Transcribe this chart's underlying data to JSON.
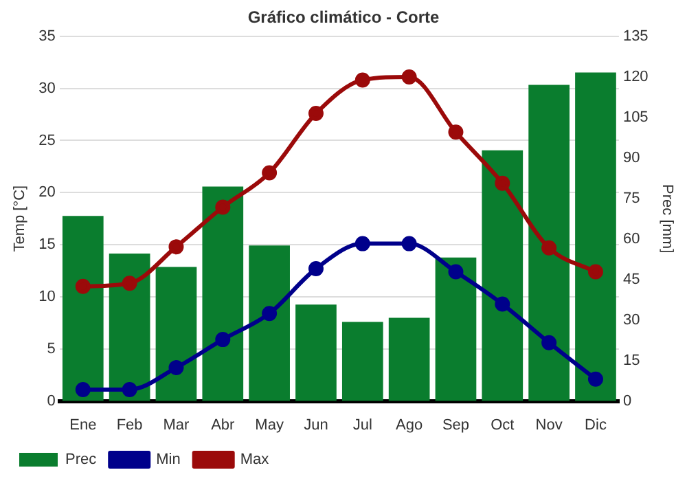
{
  "chart_data": {
    "type": "bar",
    "title": "Gráfico climático - Corte",
    "ylabel": "Temp [°C]",
    "y2label": "Prec [mm]",
    "categories": [
      "Ene",
      "Feb",
      "Mar",
      "Abr",
      "May",
      "Jun",
      "Jul",
      "Ago",
      "Sep",
      "Oct",
      "Nov",
      "Dic"
    ],
    "series": [
      {
        "name": "Prec",
        "axis": "y2",
        "color": "#0a7d2e",
        "values": [
          68.5,
          54.6,
          49.6,
          79.4,
          57.6,
          35.7,
          29.3,
          30.8,
          53.1,
          92.8,
          117,
          121.6
        ]
      },
      {
        "name": "Min",
        "type": "line",
        "color": "#00008b",
        "values": [
          1.1,
          1.1,
          3.2,
          5.9,
          8.4,
          12.7,
          15.1,
          15.1,
          12.4,
          9.3,
          5.6,
          2.1
        ]
      },
      {
        "name": "Max",
        "type": "line",
        "color": "#9b0a0a",
        "values": [
          11.0,
          11.3,
          14.8,
          18.6,
          21.9,
          27.6,
          30.8,
          31.1,
          25.8,
          20.9,
          14.7,
          12.4
        ]
      }
    ],
    "ylim": [
      0,
      35
    ],
    "yticks": [
      0,
      5,
      10,
      15,
      20,
      25,
      30,
      35
    ],
    "y2lim": [
      0,
      135
    ],
    "y2ticks": [
      0,
      15,
      30,
      45,
      60,
      75,
      90,
      105,
      120,
      135
    ],
    "grid": "y",
    "legend": "bottom left",
    "marker": "circle",
    "line_style": "solid"
  }
}
